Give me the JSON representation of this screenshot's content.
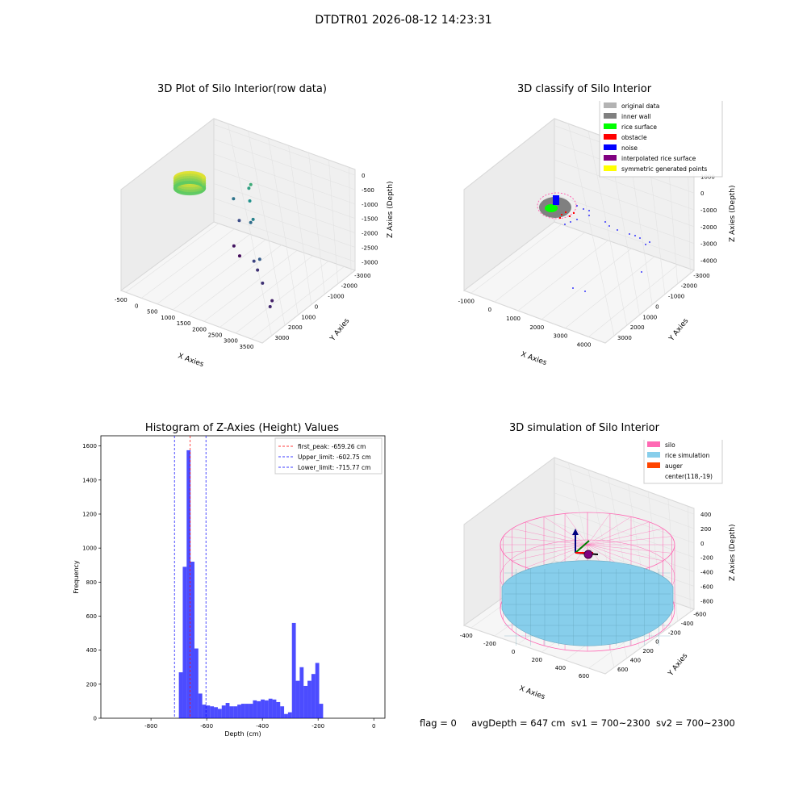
{
  "figure_title": "DTDTR01 2026-08-12 14:23:31",
  "footer": {
    "flag": "flag = 0",
    "avg_depth": "avgDepth = 647 cm",
    "sv1": "sv1 = 700~2300",
    "sv2": "sv2 = 700~2300"
  },
  "chart_data": [
    {
      "type": "scatter",
      "projection": "3d",
      "title": "3D Plot of Silo Interior(row data)",
      "xlabel": "X Axies",
      "ylabel": "Y Axies",
      "zlabel": "Z Axies (Depth)",
      "x_ticks": [
        "-500",
        "0",
        "500",
        "1000",
        "1500",
        "2000",
        "2500",
        "3000",
        "3500"
      ],
      "y_ticks": [
        "-3000",
        "-2000",
        "-1000",
        "0",
        "1000",
        "2000",
        "3000"
      ],
      "z_ticks": [
        "0",
        "-500",
        "-1000",
        "-1500",
        "-2000",
        "-2500",
        "-3000"
      ],
      "xlim": [
        -600,
        3600
      ],
      "ylim": [
        -3200,
        3200
      ],
      "zlim": [
        -3300,
        100
      ],
      "colormap": "viridis (by depth)",
      "points": [
        {
          "x": 200,
          "y": 2700,
          "z": -2000
        },
        {
          "x": 500,
          "y": 2400,
          "z": -2500
        },
        {
          "x": 900,
          "y": 2200,
          "z": -1600
        },
        {
          "x": 1100,
          "y": 1800,
          "z": -2100
        },
        {
          "x": 1300,
          "y": 1500,
          "z": -1800
        },
        {
          "x": 1800,
          "y": 400,
          "z": -2600
        },
        {
          "x": 1950,
          "y": 300,
          "z": -2800
        },
        {
          "x": 2100,
          "y": 100,
          "z": -2300
        },
        {
          "x": 2400,
          "y": -400,
          "z": -2800
        },
        {
          "x": 2900,
          "y": -900,
          "z": -3000
        },
        {
          "x": 3100,
          "y": -1500,
          "z": -2900
        },
        {
          "x": 600,
          "y": 1800,
          "z": -3100
        },
        {
          "x": 900,
          "y": 1500,
          "z": -3200
        },
        {
          "x": 700,
          "y": 2600,
          "z": -1400
        },
        {
          "x": 800,
          "y": 2500,
          "z": -1200
        }
      ]
    },
    {
      "type": "scatter",
      "projection": "3d",
      "title": "3D classify of Silo Interior",
      "xlabel": "X Axies",
      "ylabel": "Y Axies",
      "zlabel": "Z Axies (Depth)",
      "x_ticks": [
        "-1000",
        "0",
        "1000",
        "2000",
        "3000",
        "4000"
      ],
      "y_ticks": [
        "-3000",
        "-2000",
        "-1000",
        "0",
        "1000",
        "2000",
        "3000"
      ],
      "z_ticks": [
        "1000",
        "0",
        "-1000",
        "-2000",
        "-3000",
        "-4000"
      ],
      "xlim": [
        -1200,
        4200
      ],
      "ylim": [
        -3200,
        3200
      ],
      "zlim": [
        -4500,
        1100
      ],
      "legend_position": "top-right",
      "legend": [
        {
          "label": "original data",
          "color": "#b3b3b3"
        },
        {
          "label": "inner wall",
          "color": "#808080"
        },
        {
          "label": "rice surface",
          "color": "#00ff00"
        },
        {
          "label": "obstacle",
          "color": "#ff0000"
        },
        {
          "label": "noise",
          "color": "#0000ff"
        },
        {
          "label": "interpolated rice surface",
          "color": "#800080"
        },
        {
          "label": "symmetric generated points",
          "color": "#ffff00"
        }
      ]
    },
    {
      "type": "bar",
      "title": "Histogram of Z-Axies (Height) Values",
      "xlabel": "Depth (cm)",
      "ylabel": "Frequency",
      "xlim": [
        -980,
        40
      ],
      "ylim": [
        0,
        1660
      ],
      "x_ticks": [
        -800,
        -600,
        -400,
        -200,
        0
      ],
      "y_ticks": [
        0,
        200,
        400,
        600,
        800,
        1000,
        1200,
        1400,
        1600
      ],
      "bar_color": "#0000ff",
      "bin_start": -700,
      "bin_width": 14,
      "values": [
        270,
        890,
        1575,
        920,
        410,
        145,
        80,
        75,
        70,
        65,
        55,
        75,
        90,
        70,
        70,
        80,
        85,
        85,
        85,
        105,
        100,
        110,
        105,
        115,
        110,
        95,
        70,
        25,
        35,
        560,
        220,
        300,
        190,
        220,
        260,
        325,
        85
      ],
      "lines": [
        {
          "label": "first_peak: -659.26 cm",
          "value": -659.26,
          "color": "#ff0000"
        },
        {
          "label": "Upper_limit: -602.75 cm",
          "value": -602.75,
          "color": "#0000ff"
        },
        {
          "label": "Lower_limit: -715.77 cm",
          "value": -715.77,
          "color": "#0000ff"
        }
      ],
      "legend_position": "upper right"
    },
    {
      "type": "surface",
      "projection": "3d",
      "title": "3D simulation of Silo Interior",
      "xlabel": "X Axies",
      "ylabel": "Y Axies",
      "zlabel": "Z Axies (Depth)",
      "x_ticks": [
        "-400",
        "-200",
        "0",
        "200",
        "400",
        "600"
      ],
      "y_ticks": [
        "-600",
        "-400",
        "-200",
        "0",
        "200",
        "400",
        "600"
      ],
      "z_ticks": [
        "400",
        "200",
        "0",
        "-200",
        "-400",
        "-600",
        "-800"
      ],
      "xlim": [
        -500,
        700
      ],
      "ylim": [
        -700,
        700
      ],
      "zlim": [
        -900,
        500
      ],
      "legend_position": "top-right",
      "legend": [
        {
          "label": "silo",
          "color": "#ff69b4"
        },
        {
          "label": "rice simulation",
          "color": "#87ceeb"
        },
        {
          "label": "auger",
          "color": "#ff4500"
        },
        {
          "label": "center(118,-19)",
          "color": ""
        }
      ]
    }
  ]
}
